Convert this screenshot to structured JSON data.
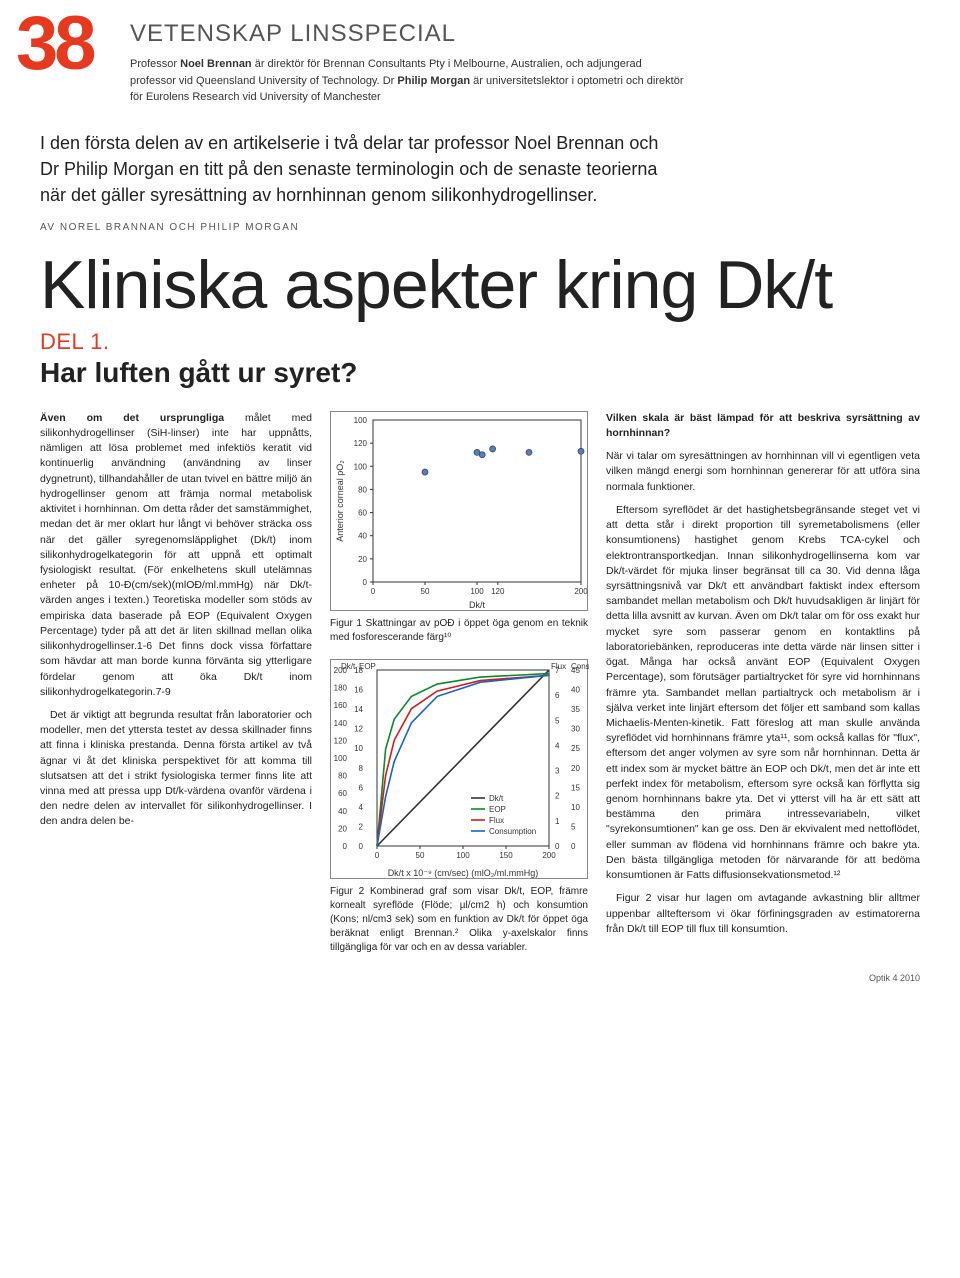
{
  "page_number": "38",
  "kicker": "VETENSKAP LINSSPECIAL",
  "bio": "Professor <b>Noel Brennan</b> är direktör för Brennan Consultants Pty i Melbourne, Australien, och adjungerad professor vid Queensland University of Technology. Dr <b>Philip Morgan</b> är universitetslektor i optometri och direktör för Eurolens Research vid University of Manchester",
  "lede": "I den första delen av en artikelserie i två delar tar professor Noel Brennan och Dr Philip Morgan en titt på den senaste terminologin och de senaste teorierna när det gäller syresättning av hornhinnan genom silikonhydrogellinser.",
  "byline": "AV NOREL BRANNAN OCH PHILIP MORGAN",
  "title": "Kliniska aspekter kring Dk/t",
  "del": "DEL 1.",
  "subtitle": "Har luften gått ur syret?",
  "left_col": {
    "p1_lead": "Även om det ursprungliga",
    "p1": " målet med silikonhydrogellinser (SiH-linser) inte har uppnåtts, nämligen att lösa problemet med infektiös keratit vid kontinuerlig användning (användning av linser dygnetrunt), tillhandahåller de utan tvivel en bättre miljö än hydrogellinser genom att främja normal metabolisk aktivitet i hornhinnan. Om detta råder det samstämmighet, medan det är mer oklart hur långt vi behöver sträcka oss när det gäller syregenomsläpplighet (Dk/t) inom silikonhydrogelkategorin för att uppnå ett optimalt fysiologiskt resultat. (För enkelhetens skull utelämnas enheter på 10-Đ(cm/sek)(mlOĐ/ml.mmHg) när Dk/t-värden anges i texten.) Teoretiska modeller som stöds av empiriska data baserade på EOP (Equivalent Oxygen Percentage) tyder på att det är liten skillnad mellan olika silikonhydrogellinser.1-6 Det finns dock vissa författare som hävdar att man borde kunna förvänta sig ytterligare fördelar genom att öka Dk/t inom silikonhydrogelkategorin.7-9",
    "p2": "Det är viktigt att begrunda resultat från laboratorier och modeller, men det yttersta testet av dessa skillnader finns att finna i kliniska prestanda. Denna första artikel av två ägnar vi åt det kliniska perspektivet för att komma till slutsatsen att det i strikt fysiologiska termer finns lite att vinna med att pressa upp Dt/k-värdena ovanför värdena i den nedre delen av intervallet för silikonhydrogellinser. I den andra delen be-"
  },
  "fig1": {
    "type": "scatter",
    "x": [
      50,
      100,
      105,
      115,
      150,
      200
    ],
    "y": [
      95,
      112,
      110,
      115,
      112,
      113
    ],
    "xlim": [
      0,
      200
    ],
    "ylim": [
      0,
      140
    ],
    "xticks": [
      0,
      50,
      100,
      120,
      200
    ],
    "xtick_labels": [
      "0",
      "50",
      "100",
      "120",
      "200"
    ],
    "yticks": [
      0,
      20,
      40,
      60,
      80,
      100,
      120,
      100
    ],
    "ytick_labels": [
      "0",
      "20",
      "40",
      "60",
      "80",
      "100",
      "120",
      "100"
    ],
    "marker_color": "#5b7db0",
    "marker_size": 6,
    "xlabel": "Dk/t",
    "ylabel": "Anterior corneal pO₂",
    "background": "#ffffff",
    "axis_color": "#333333",
    "caption": "Figur 1 Skattningar av pOĐ i öppet öga genom en teknik med fosforescerande färg¹⁰"
  },
  "fig2": {
    "type": "multi-line",
    "xlim": [
      0,
      200
    ],
    "xticks": [
      0,
      50,
      100,
      150,
      200
    ],
    "left_axes": [
      {
        "label": "Dk/t",
        "color": "#333333",
        "ticks": [
          "0",
          "20",
          "40",
          "60",
          "80",
          "100",
          "120",
          "140",
          "160",
          "180",
          "200"
        ]
      },
      {
        "label": "EOP",
        "color": "#0a8a2a",
        "ticks": [
          "0",
          "2",
          "4",
          "6",
          "8",
          "10",
          "12",
          "14",
          "16",
          "18"
        ]
      }
    ],
    "right_axes": [
      {
        "label": "Flux",
        "color": "#d41c1c",
        "ticks": [
          "0",
          "1",
          "2",
          "3",
          "4",
          "5",
          "6",
          "7"
        ]
      },
      {
        "label": "Cons",
        "color": "#333333",
        "ticks": [
          "0",
          "5",
          "10",
          "15",
          "20",
          "25",
          "30",
          "35",
          "40",
          "45"
        ]
      }
    ],
    "series": [
      {
        "name": "Dk/t",
        "color": "#333333",
        "x": [
          0,
          200
        ],
        "y": [
          0,
          1
        ],
        "style": "line"
      },
      {
        "name": "EOP",
        "color": "#0a8a2a",
        "x": [
          0,
          10,
          20,
          40,
          70,
          120,
          200
        ],
        "y": [
          0,
          0.55,
          0.72,
          0.85,
          0.92,
          0.96,
          0.98
        ],
        "style": "line"
      },
      {
        "name": "Flux",
        "color": "#d41c1c",
        "x": [
          0,
          10,
          20,
          40,
          70,
          120,
          200
        ],
        "y": [
          0,
          0.4,
          0.6,
          0.78,
          0.88,
          0.94,
          0.97
        ],
        "style": "line"
      },
      {
        "name": "Consumption",
        "color": "#1b63c4",
        "x": [
          0,
          10,
          20,
          40,
          70,
          120,
          200
        ],
        "y": [
          0,
          0.28,
          0.48,
          0.7,
          0.85,
          0.93,
          0.97
        ],
        "style": "line"
      }
    ],
    "xlabel": "Dk/t x 10⁻⁹ (cm/sec) (mlO₂/ml.mmHg)",
    "legend_pos": "lower-right",
    "background": "#ffffff",
    "axis_color": "#333333",
    "caption": "Figur 2 Kombinerad graf som visar Dk/t, EOP, främre kornealt syreflöde (Flöde; µl/cm2 h) och konsumtion (Kons; nl/cm3 sek) som en funktion av Dk/t för öppet öga beräknat enligt Brennan.² Olika y-axelskalor finns tillgängliga för var och en av dessa variabler."
  },
  "right_col": {
    "heading": "Vilken skala är bäst lämpad för att beskriva syrsättning av hornhinnan?",
    "p1": "När vi talar om syresättningen av hornhinnan vill vi egentligen veta vilken mängd energi som hornhinnan genererar för att utföra sina normala funktioner.",
    "p2": "Eftersom syreflödet är det hastighetsbegränsande steget vet vi att detta står i direkt proportion till syremetabolismens (eller konsumtionens) hastighet genom Krebs TCA-cykel och elektrontransportkedjan. Innan silikonhydrogellinserna kom var Dk/t-värdet för mjuka linser begränsat till ca 30. Vid denna låga syrsättningsnivå var Dk/t ett användbart faktiskt index eftersom sambandet mellan metabolism och Dk/t huvudsakligen är linjärt för detta lilla avsnitt av kurvan. Även om Dk/t talar om för oss exakt hur mycket syre som passerar genom en kontaktlins på laboratoriebänken, reproduceras inte detta värde när linsen sitter i ögat. Många har också använt EOP (Equivalent Oxygen Percentage), som förutsäger partialtrycket för syre vid hornhinnans främre yta. Sambandet mellan partialtryck och metabolism är i själva verket inte linjärt eftersom det följer ett samband som kallas Michaelis-Menten-kinetik. Fatt föreslog att man skulle använda syreflödet vid hornhinnans främre yta¹¹, som också kallas för \"flux\", eftersom det anger volymen av syre som når hornhinnan. Detta är ett index som är mycket bättre än EOP och Dk/t, men det är inte ett perfekt index för metabolism, eftersom syre också kan förflytta sig genom hornhinnans bakre yta. Det vi ytterst vill ha är ett sätt att bestämma den primära intressevariabeln, vilket \"syrekonsumtionen\" kan ge oss. Den är ekvivalent med nettoflödet, eller summan av flödena vid hornhinnans främre och bakre yta. Den bästa tillgängliga metoden för närvarande för att bedöma konsumtionen är Fatts diffusionsekvationsmetod.¹²",
    "p3": "Figur 2 visar hur lagen om avtagande avkastning blir alltmer uppenbar allteftersom vi ökar förfiningsgraden av estimatorerna från Dk/t till EOP till flux till konsumtion."
  },
  "footer": "Optik 4 2010"
}
